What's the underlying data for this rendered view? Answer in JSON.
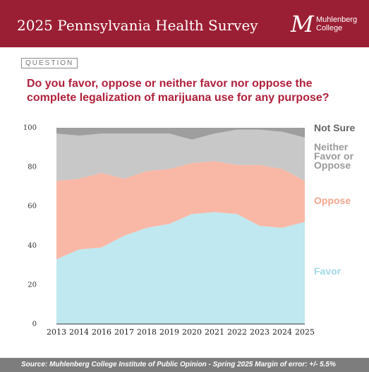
{
  "header": {
    "title": "2025 Pennsylvania Health Survey",
    "logo_mark": "M",
    "logo_line1": "Muhlenberg",
    "logo_line2": "College"
  },
  "question_label": "QUESTION",
  "question_text": "Do you favor, oppose or neither favor nor oppose the complete legalization of marijuana use for any purpose?",
  "footer": "Source: Muhlenberg College Institute of Public Opinion - Spring 2025 Margin of error: +/- 5.5%",
  "chart_data": {
    "type": "area",
    "stacked": true,
    "title": "",
    "xlabel": "",
    "ylabel": "",
    "ylim": [
      0,
      100
    ],
    "yticks": [
      0,
      20,
      40,
      60,
      80,
      100
    ],
    "grid": false,
    "legend": "right",
    "x": [
      "2013",
      "2014",
      "2016",
      "2017",
      "2018",
      "2019",
      "2020",
      "2021",
      "2022",
      "2023",
      "2024",
      "2025"
    ],
    "series": [
      {
        "name": "Favor",
        "color": "#bfe8f0",
        "label_color": "#9fdbe8",
        "values": [
          33,
          38,
          39,
          45,
          49,
          51,
          56,
          57,
          56,
          50,
          49,
          52
        ]
      },
      {
        "name": "Oppose",
        "color": "#f9b8a6",
        "label_color": "#f6a58e",
        "values": [
          40,
          36,
          38,
          29,
          29,
          28,
          26,
          26,
          25,
          31,
          30,
          21
        ]
      },
      {
        "name": "Neither Favor or Oppose",
        "color": "#c8c8c8",
        "label_color": "#9a9a9a",
        "values": [
          24,
          22,
          20,
          23,
          19,
          18,
          12,
          14,
          18,
          18,
          19,
          22
        ]
      },
      {
        "name": "Not Sure",
        "color": "#9e9e9e",
        "label_color": "#666666",
        "values": [
          3,
          4,
          3,
          3,
          3,
          3,
          6,
          3,
          1,
          1,
          2,
          5
        ]
      }
    ]
  }
}
